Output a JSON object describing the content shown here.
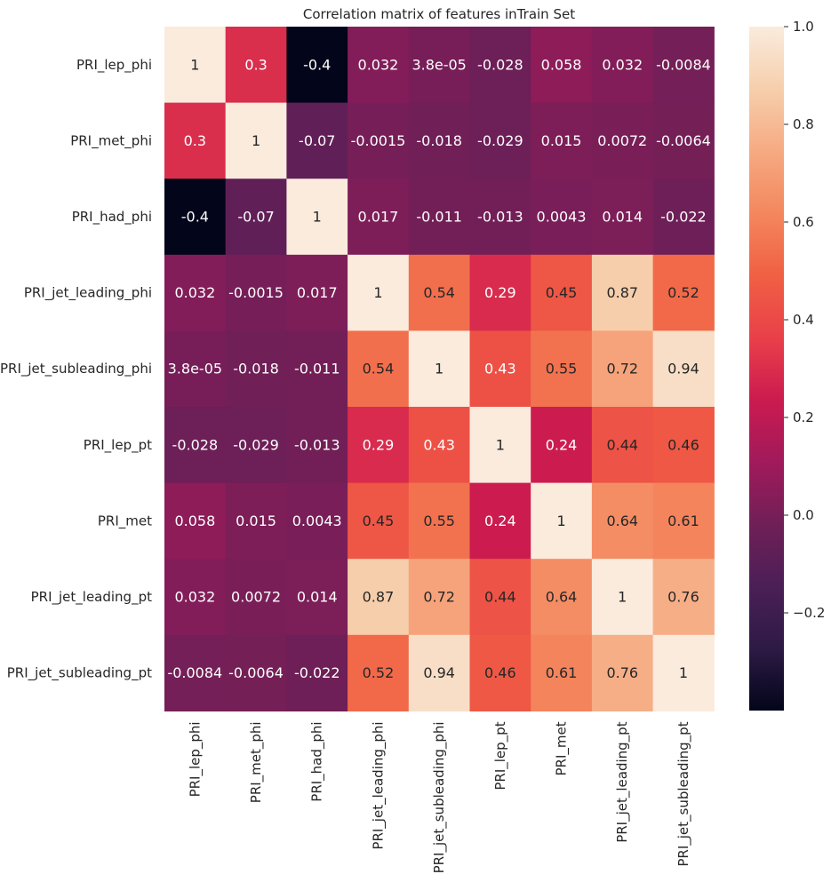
{
  "chart_data": {
    "type": "heatmap",
    "title": "Correlation matrix of features inTrain Set",
    "labels": [
      "PRI_lep_phi",
      "PRI_met_phi",
      "PRI_had_phi",
      "PRI_jet_leading_phi",
      "PRI_jet_subleading_phi",
      "PRI_lep_pt",
      "PRI_met",
      "PRI_jet_leading_pt",
      "PRI_jet_subleading_pt"
    ],
    "annotations": [
      [
        "1",
        "0.3",
        "-0.4",
        "0.032",
        "3.8e-05",
        "-0.028",
        "0.058",
        "0.032",
        "-0.0084"
      ],
      [
        "0.3",
        "1",
        "-0.07",
        "-0.0015",
        "-0.018",
        "-0.029",
        "0.015",
        "0.0072",
        "-0.0064"
      ],
      [
        "-0.4",
        "-0.07",
        "1",
        "0.017",
        "-0.011",
        "-0.013",
        "0.0043",
        "0.014",
        "-0.022"
      ],
      [
        "0.032",
        "-0.0015",
        "0.017",
        "1",
        "0.54",
        "0.29",
        "0.45",
        "0.87",
        "0.52"
      ],
      [
        "3.8e-05",
        "-0.018",
        "-0.011",
        "0.54",
        "1",
        "0.43",
        "0.55",
        "0.72",
        "0.94"
      ],
      [
        "-0.028",
        "-0.029",
        "-0.013",
        "0.29",
        "0.43",
        "1",
        "0.24",
        "0.44",
        "0.46"
      ],
      [
        "0.058",
        "0.015",
        "0.0043",
        "0.45",
        "0.55",
        "0.24",
        "1",
        "0.64",
        "0.61"
      ],
      [
        "0.032",
        "0.0072",
        "0.014",
        "0.87",
        "0.72",
        "0.44",
        "0.64",
        "1",
        "0.76"
      ],
      [
        "-0.0084",
        "-0.0064",
        "-0.022",
        "0.52",
        "0.94",
        "0.46",
        "0.61",
        "0.76",
        "1"
      ]
    ],
    "colorbar": {
      "colormap": "rocket",
      "vmin": -0.4,
      "vmax": 1.0,
      "ticks": [
        "−0.2",
        "0.0",
        "0.2",
        "0.4",
        "0.6",
        "0.8",
        "1.0"
      ]
    },
    "colors": {
      "stops": [
        "#03051a",
        "#2d1a45",
        "#4b1f57",
        "#701f57",
        "#a11a5b",
        "#cb1b4f",
        "#e9404a",
        "#f06043",
        "#f4875e",
        "#f6aa82",
        "#f6cfac",
        "#faebdd"
      ],
      "light_text": "#ffffff",
      "dark_text": "#262626"
    }
  }
}
